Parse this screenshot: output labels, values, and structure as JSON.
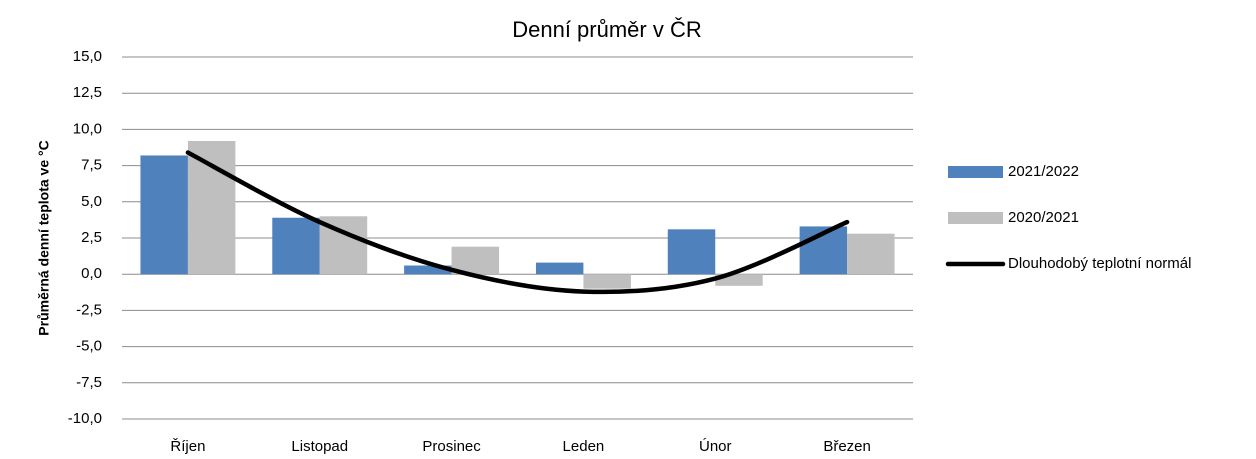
{
  "chart_data": {
    "type": "bar",
    "title": "Denní průměr v ČR",
    "y_label": "Průměrná denní teplota ve °C",
    "categories": [
      "Říjen",
      "Listopad",
      "Prosinec",
      "Leden",
      "Únor",
      "Březen"
    ],
    "series": [
      {
        "name": "2021/2022",
        "color": "#4f81bd",
        "values": [
          8.2,
          3.9,
          0.6,
          0.8,
          3.1,
          3.3
        ]
      },
      {
        "name": "2020/2021",
        "color": "#bfbfbf",
        "values": [
          9.2,
          4.0,
          1.9,
          -1.0,
          -0.8,
          2.8
        ]
      },
      {
        "name": "Dlouhodobý teplotní normál",
        "color": "#000000",
        "type": "line",
        "smooth": true,
        "values": [
          8.4,
          3.6,
          0.3,
          -1.2,
          -0.3,
          3.6
        ]
      }
    ],
    "ylim": [
      -10,
      15
    ],
    "yticks": [
      {
        "value": -10,
        "label": "-10,0"
      },
      {
        "value": -7.5,
        "label": "-7,5"
      },
      {
        "value": -5,
        "label": "-5,0"
      },
      {
        "value": -2.5,
        "label": "-2,5"
      },
      {
        "value": 0,
        "label": "0,0"
      },
      {
        "value": 2.5,
        "label": "2,5"
      },
      {
        "value": 5,
        "label": "5,0"
      },
      {
        "value": 7.5,
        "label": "7,5"
      },
      {
        "value": 10,
        "label": "10,0"
      },
      {
        "value": 12.5,
        "label": "12,5"
      },
      {
        "value": 15,
        "label": "15,0"
      }
    ],
    "grid": true,
    "legend": "right"
  }
}
